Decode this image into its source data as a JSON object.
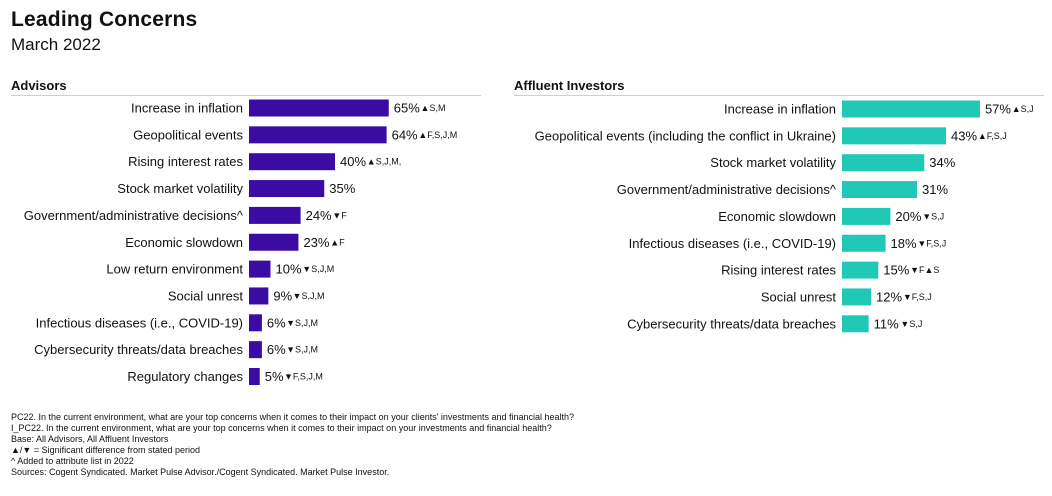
{
  "header": {
    "title": "Leading Concerns",
    "subtitle": "March 2022"
  },
  "colors": {
    "advisors_bar": "#3a0ca3",
    "investors_bar": "#1fc9b6",
    "text": "#111111"
  },
  "chart_data": [
    {
      "type": "bar",
      "orientation": "horizontal",
      "title": "Advisors",
      "value_suffix": "%",
      "xlim": [
        0,
        100
      ],
      "categories": [
        "Increase in inflation",
        "Geopolitical events",
        "Rising interest rates",
        "Stock market volatility",
        "Government/administrative decisions^",
        "Economic slowdown",
        "Low return environment",
        "Social unrest",
        "Infectious diseases (i.e., COVID-19)",
        "Cybersecurity threats/data breaches",
        "Regulatory changes"
      ],
      "values": [
        65,
        64,
        40,
        35,
        24,
        23,
        10,
        9,
        6,
        6,
        5
      ],
      "annotations": [
        "▲S,M",
        "▲F,S,J,M",
        "▲S,J,M,",
        "",
        "▼F",
        "▲F",
        "▼S,J,M",
        "▼S,J,M",
        "▼S,J,M",
        "▼S,J,M",
        "▼F,S,J,M"
      ]
    },
    {
      "type": "bar",
      "orientation": "horizontal",
      "title": "Affluent Investors",
      "value_suffix": "%",
      "xlim": [
        0,
        100
      ],
      "categories": [
        "Increase in inflation",
        "Geopolitical events (including the conflict in Ukraine)",
        "Stock market volatility",
        "Government/administrative decisions^",
        "Economic slowdown",
        "Infectious diseases (i.e., COVID-19)",
        "Rising interest rates",
        "Social unrest",
        "Cybersecurity threats/data breaches"
      ],
      "values": [
        57,
        43,
        34,
        31,
        20,
        18,
        15,
        12,
        11
      ],
      "annotations": [
        "▲S,J",
        "▲F,S,J",
        "",
        "",
        "▼S,J",
        "▼F,S,J",
        "▼F▲S",
        "▼F,S,J",
        "▼S,J"
      ]
    }
  ],
  "notes": [
    "PC22.  In the current environment, what are your top concerns when it comes to their impact on your clients' investments and financial health?",
    "I_PC22.  In the current environment, what are your top concerns when it comes to their impact on your investments and financial health?",
    "Base: All Advisors, All Affluent Investors",
    "▲/▼ = Significant difference from stated period",
    "^ Added to attribute list in 2022",
    "Sources: Cogent Syndicated. Market Pulse Advisor./Cogent Syndicated. Market Pulse Investor."
  ]
}
